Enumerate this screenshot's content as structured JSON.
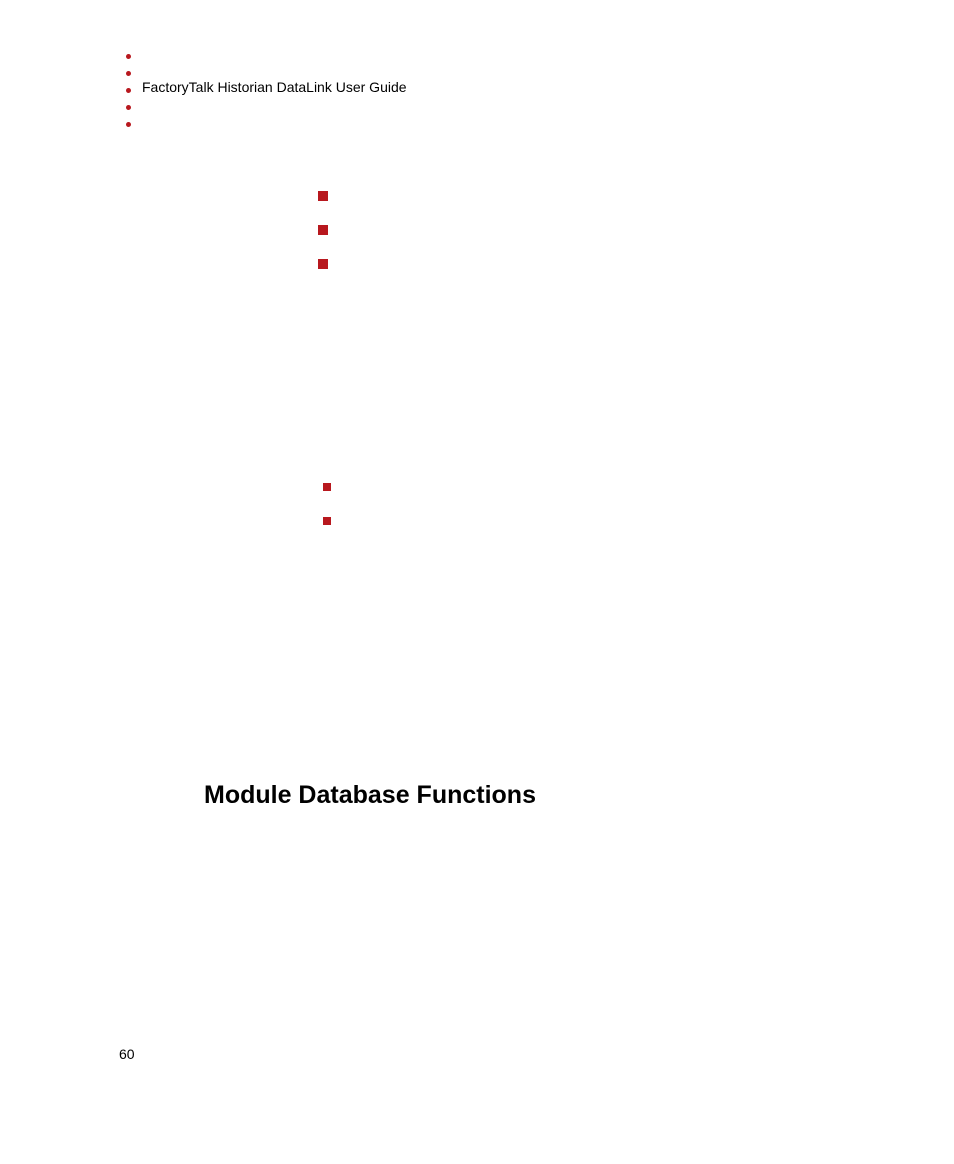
{
  "header": {
    "title": "FactoryTalk Historian DataLink User Guide"
  },
  "sidebar_dots": {
    "count": 5,
    "color": "#b8181e",
    "size": 5,
    "spacing": 12
  },
  "bullets_group1": {
    "count": 3,
    "color": "#b8181e",
    "size": 10,
    "spacing": 24
  },
  "bullets_group2": {
    "count": 2,
    "color": "#b8181e",
    "size": 8,
    "spacing": 26
  },
  "section": {
    "heading": "Module Database Functions"
  },
  "footer": {
    "page_number": "60"
  },
  "styling": {
    "background_color": "#ffffff",
    "text_color": "#000000",
    "accent_color": "#b8181e",
    "header_fontsize": 14,
    "heading_fontsize": 25,
    "page_number_fontsize": 14,
    "font_family": "Verdana"
  }
}
